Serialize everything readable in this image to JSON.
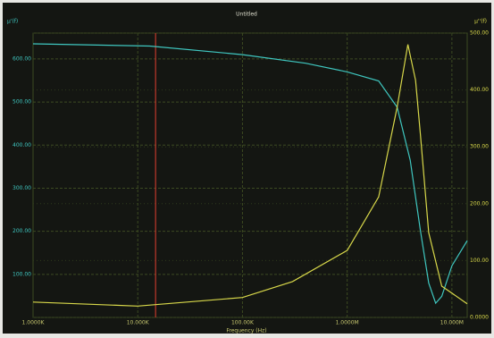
{
  "chart_data": {
    "type": "line",
    "title": "Untitled",
    "x_label": "Frequency (Hz)",
    "y_label": "µ'(f)",
    "y2_label": "µ''(f)",
    "log_x": true,
    "grid": true,
    "xlim": [
      1000,
      14000000
    ],
    "xticks": [
      {
        "value": 1000,
        "label": "1.0000K"
      },
      {
        "value": 10000,
        "label": "10.000K"
      },
      {
        "value": 100000,
        "label": "100.00K"
      },
      {
        "value": 1000000,
        "label": "1.0000M"
      },
      {
        "value": 10000000,
        "label": "10.000M"
      }
    ],
    "ylim": [
      0,
      660
    ],
    "yticks": [
      {
        "value": 100,
        "label": "100.00"
      },
      {
        "value": 200,
        "label": "200.00"
      },
      {
        "value": 300,
        "label": "300.00"
      },
      {
        "value": 400,
        "label": "400.00"
      },
      {
        "value": 500,
        "label": "500.00"
      },
      {
        "value": 600,
        "label": "600.00"
      }
    ],
    "y2lim": [
      0,
      500
    ],
    "y2ticks": [
      {
        "value": 0,
        "label": "0.0000"
      },
      {
        "value": 100,
        "label": "100.00"
      },
      {
        "value": 200,
        "label": "200.00"
      },
      {
        "value": 300,
        "label": "300.00"
      },
      {
        "value": 400,
        "label": "400.00"
      },
      {
        "value": 500,
        "label": "500.00"
      }
    ],
    "cursor_x": 14800,
    "cursor_color": "#c0392b",
    "series": [
      {
        "color": "#3fc7c0",
        "axis": "y",
        "x": [
          1000,
          13000,
          100000,
          400000,
          1000000,
          2000000,
          3000000,
          4000000,
          5000000,
          6000000,
          7000000,
          8000000,
          10000000,
          14000000
        ],
        "values": [
          635,
          630,
          610,
          590,
          570,
          549,
          488,
          365,
          202,
          80,
          33,
          49,
          120,
          178
        ]
      },
      {
        "color": "#d8d84a",
        "axis": "y2",
        "x": [
          1000,
          10000,
          100000,
          300000,
          1000000,
          2000000,
          3000000,
          3800000,
          4500000,
          5000000,
          6000000,
          8000000,
          14000000
        ],
        "values": [
          27,
          20,
          35,
          63,
          118,
          212,
          370,
          480,
          417,
          322,
          149,
          55,
          24
        ]
      }
    ]
  }
}
